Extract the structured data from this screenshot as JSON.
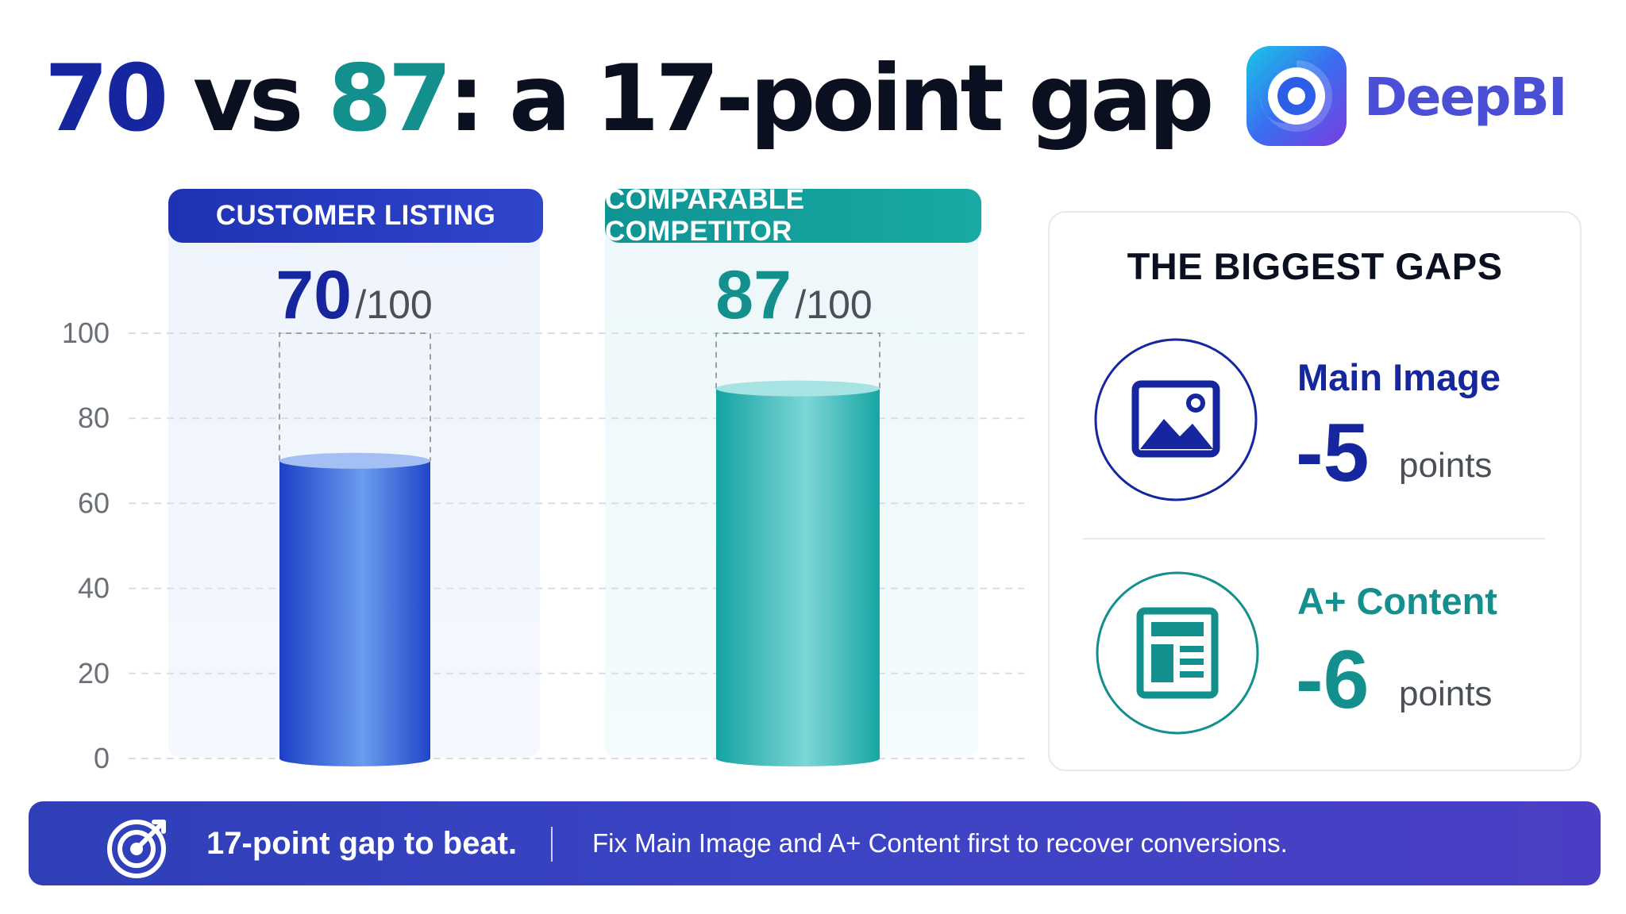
{
  "title": {
    "part1": "70",
    "part2": " vs ",
    "part3": "87",
    "part4": ": a 17-point gap"
  },
  "brand": {
    "name": "DeepBI"
  },
  "colors": {
    "customer": "#1c3dc4",
    "competitor": "#12999a",
    "navy": "#16269e",
    "teal": "#13908e"
  },
  "chart_data": {
    "type": "bar",
    "categories": [
      "CUSTOMER LISTING",
      "COMPARABLE COMPETITOR"
    ],
    "values": [
      70,
      87
    ],
    "max": 100,
    "score_suffix": "/100",
    "ylim": [
      0,
      100
    ],
    "yticks": [
      "0",
      "20",
      "40",
      "60",
      "80",
      "100"
    ],
    "grid": true
  },
  "panel": {
    "title": "THE BIGGEST GAPS",
    "gaps": [
      {
        "name": "Main Image",
        "value": "-5",
        "unit": "points",
        "icon": "image-icon"
      },
      {
        "name": "A+ Content",
        "value": "-6",
        "unit": "points",
        "icon": "document-layout-icon"
      }
    ]
  },
  "banner": {
    "icon": "target-icon",
    "headline": "17-point gap to beat.",
    "text": "Fix Main Image and A+ Content first to recover conversions."
  }
}
